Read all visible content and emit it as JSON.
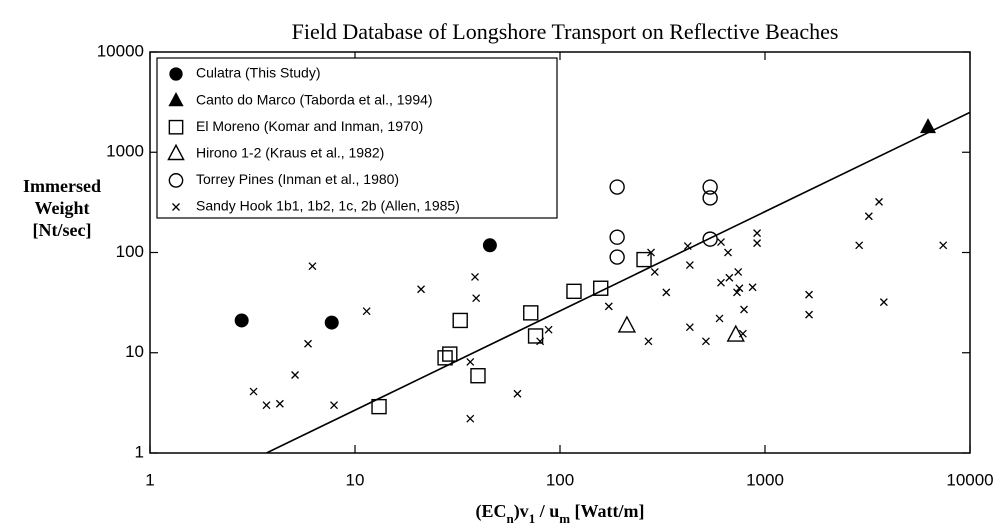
{
  "chart_data": {
    "type": "scatter",
    "title": "Field Database of Longshore Transport on Reflective Beaches",
    "xlabel": [
      "(EC",
      "n",
      ")v",
      "1",
      " / u",
      "m",
      "  [Watt/m]"
    ],
    "ylabel": [
      "Immersed",
      "Weight",
      "[Nt/sec]"
    ],
    "xlog": true,
    "ylog": true,
    "xlim": [
      1,
      10000
    ],
    "ylim": [
      1,
      10000
    ],
    "xticks": [
      1,
      10,
      100,
      1000,
      10000
    ],
    "yticks": [
      1,
      10,
      100,
      1000,
      10000
    ],
    "grid": false,
    "legend": "upper left",
    "series": [
      {
        "name": "Culatra (This Study)",
        "marker": "filled-circle",
        "color": "#000000",
        "x": [
          2.8,
          7.7,
          45.5
        ],
        "values": [
          21,
          20,
          118
        ]
      },
      {
        "name": "Canto do Marco (Taborda et al., 1994)",
        "marker": "filled-triangle",
        "color": "#000000",
        "x": [
          6240
        ],
        "values": [
          1780
        ]
      },
      {
        "name": "El Moreno (Komar and Inman, 1970)",
        "marker": "open-square",
        "color": "#000000",
        "x": [
          13.1,
          27.5,
          29,
          32.6,
          39.8,
          72,
          76,
          117,
          158,
          257
        ],
        "values": [
          2.9,
          8.9,
          9.7,
          21,
          5.9,
          25,
          14.7,
          41,
          44,
          85
        ]
      },
      {
        "name": "Hirono 1-2 (Kraus et al., 1982)",
        "marker": "open-triangle",
        "color": "#000000",
        "x": [
          212,
          720
        ],
        "values": [
          18.5,
          15
        ]
      },
      {
        "name": "Torrey Pines (Inman et al., 1980)",
        "marker": "open-circle",
        "color": "#000000",
        "x": [
          190,
          190,
          190,
          540,
          540,
          540
        ],
        "values": [
          450,
          142,
          90,
          450,
          350,
          136
        ]
      },
      {
        "name": "Sandy Hook 1b1, 1b2, 1c, 2b (Allen, 1985)",
        "marker": "cross",
        "color": "#000000",
        "x": [
          3.2,
          3.7,
          4.3,
          5.1,
          5.9,
          6.2,
          7.9,
          11.4,
          21,
          36.5,
          36.5,
          38.5,
          39,
          62,
          88,
          80,
          173,
          278,
          290,
          330,
          270,
          420,
          430,
          430,
          515,
          600,
          610,
          610,
          660,
          670,
          740,
          730,
          750,
          780,
          790,
          870,
          915,
          915,
          1640,
          1640,
          2880,
          3210,
          3600,
          3800,
          7400
        ],
        "values": [
          4.1,
          3.0,
          3.1,
          6.0,
          12.3,
          73,
          3.0,
          26,
          43,
          2.2,
          8.1,
          57,
          35,
          3.9,
          17,
          13,
          29,
          100,
          64,
          40,
          13,
          116,
          75,
          18,
          13,
          22,
          127,
          50,
          100,
          56,
          64,
          40,
          44,
          15.5,
          27,
          45,
          156,
          124,
          38,
          24,
          118,
          230,
          320,
          32,
          118
        ]
      }
    ],
    "line": {
      "color": "#000000",
      "x": [
        3.7,
        10000
      ],
      "values": [
        1,
        2500
      ]
    }
  }
}
